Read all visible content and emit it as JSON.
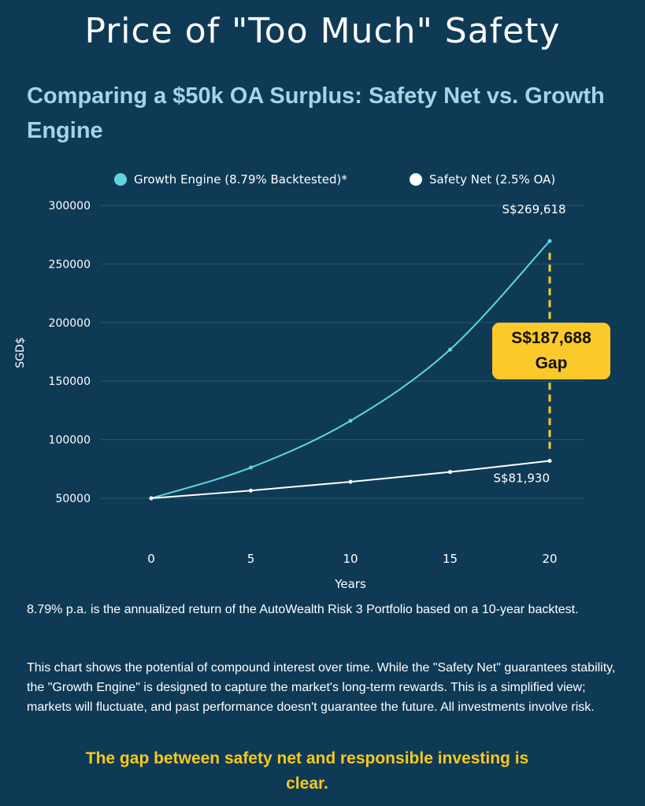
{
  "page": {
    "title": "Price of \"Too Much\" Safety",
    "subtitle": "Comparing a $50k OA Surplus: Safety Net vs. Growth Engine",
    "note_backtest": "8.79% p.a. is the annualized return of the AutoWealth Risk 3 Portfolio based on a 10-year backtest.",
    "note_disclaimer": "This chart shows the potential of compound interest over time. While the \"Safety Net\" guarantees stability, the \"Growth Engine\" is designed to capture the market's long-term rewards.  This is a simplified view; markets will fluctuate, and past performance doesn't guarantee the future. All investments involve risk.",
    "conclusion": "The gap between safety net and responsible investing is clear."
  },
  "colors": {
    "background": "#0f3a55",
    "growth": "#5fd6dc",
    "safety": "#ffffff",
    "gap": "#fbc92a",
    "subtitle": "#a6d4e6",
    "grid": "#2a5670"
  },
  "chart_data": {
    "type": "line",
    "xlabel": "Years",
    "ylabel": "SGD$",
    "x": [
      0,
      5,
      10,
      15,
      20
    ],
    "xticks": [
      "0",
      "5",
      "10",
      "15",
      "20"
    ],
    "ylim": [
      50000,
      300000
    ],
    "yticks": [
      "50000",
      "100000",
      "150000",
      "200000",
      "250000",
      "300000"
    ],
    "ytick_values": [
      50000,
      100000,
      150000,
      200000,
      250000,
      300000
    ],
    "grid": true,
    "legend_position": "top",
    "series": [
      {
        "name": "Growth Engine (8.79% Backtested)*",
        "values": [
          50000,
          76200,
          116100,
          176900,
          269618
        ],
        "end_label": "S$269,618"
      },
      {
        "name": "Safety Net (2.5% OA)",
        "values": [
          50000,
          56570,
          64000,
          72400,
          81930
        ],
        "end_label": "S$81,930"
      }
    ],
    "annotation": {
      "value": "S$187,688",
      "label": "Gap",
      "at_x": 20
    }
  }
}
